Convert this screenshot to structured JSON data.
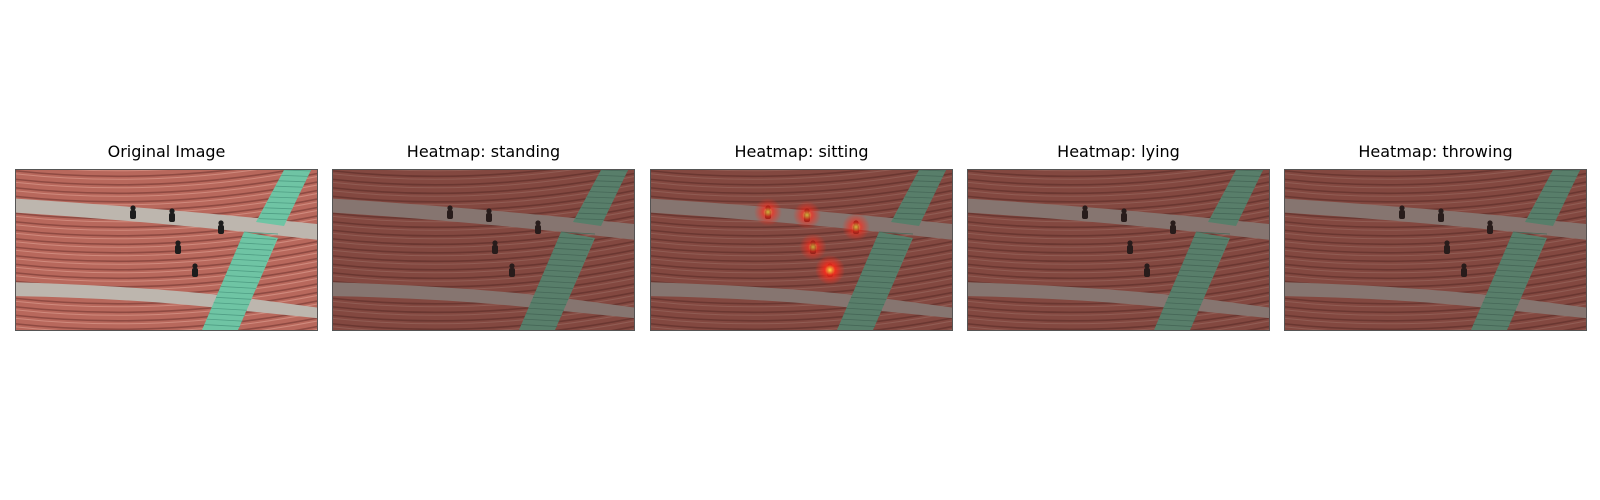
{
  "figure": {
    "panels": [
      {
        "title": "Original Image",
        "dim": 0,
        "heat": []
      },
      {
        "title": "Heatmap: standing",
        "dim": 0.42,
        "heat": []
      },
      {
        "title": "Heatmap: sitting",
        "dim": 0.42,
        "heat": [
          0.8,
          0.8,
          0.8,
          0.75,
          1.0
        ]
      },
      {
        "title": "Heatmap: lying",
        "dim": 0.42,
        "heat": []
      },
      {
        "title": "Heatmap: throwing",
        "dim": 0.42,
        "heat": []
      }
    ],
    "colors": {
      "seat_red": "#b8685c",
      "aisle_gray": "#bdb6ae",
      "stairs_green": "#6fc4a4",
      "person_dark": "#1c1c1c",
      "overlay": "#3a1d1a",
      "heat_hot": "#ffe84a",
      "heat_warm": "#ff2a1a"
    }
  }
}
